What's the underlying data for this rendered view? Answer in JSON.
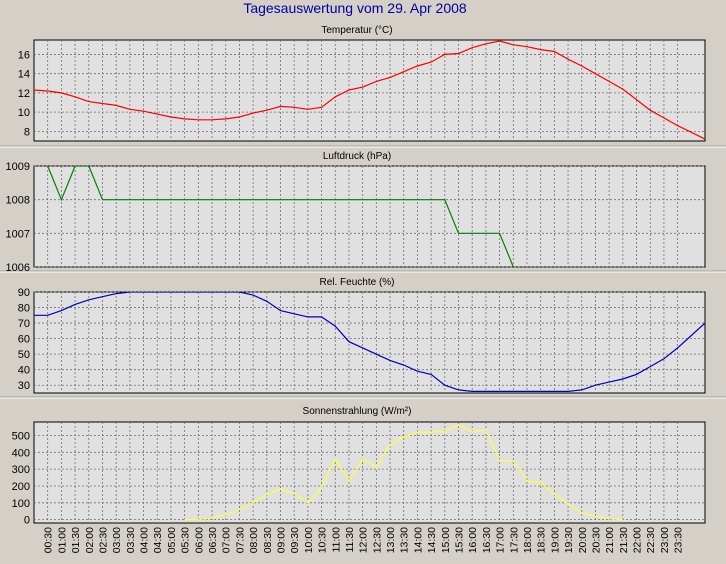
{
  "page": {
    "title": "Tagesauswertung vom 29. Apr 2008"
  },
  "time_labels": [
    "00:30",
    "01:00",
    "01:30",
    "02:00",
    "02:30",
    "03:00",
    "03:30",
    "04:00",
    "04:30",
    "05:00",
    "05:30",
    "06:00",
    "06:30",
    "07:00",
    "07:30",
    "08:00",
    "08:30",
    "09:00",
    "09:30",
    "10:00",
    "10:30",
    "11:00",
    "11:30",
    "12:00",
    "12:30",
    "13:00",
    "13:30",
    "14:00",
    "14:30",
    "15:00",
    "15:30",
    "16:00",
    "16:30",
    "17:00",
    "17:30",
    "18:00",
    "18:30",
    "19:00",
    "19:30",
    "20:00",
    "20:30",
    "21:00",
    "21:30",
    "22:00",
    "22:30",
    "23:00",
    "23:30"
  ],
  "colors": {
    "background": "#d4d0c8",
    "plot_bg": "#e0e0e0",
    "title": "#0000a0",
    "temperature": "#ff0000",
    "pressure": "#008000",
    "humidity": "#0000c0",
    "radiation": "#ffff40"
  },
  "chart_data": [
    {
      "type": "line",
      "title": "Temperatur (°C)",
      "xlabel": "",
      "ylabel": "",
      "ylim": [
        7,
        17.5
      ],
      "yticks": [
        8,
        10,
        12,
        14,
        16
      ],
      "grid": true,
      "series": [
        {
          "color": "#ff0000",
          "points": [
            [
              0.0,
              12.3
            ],
            [
              0.5,
              12.2
            ],
            [
              1.0,
              12.0
            ],
            [
              1.5,
              11.6
            ],
            [
              2.0,
              11.1
            ],
            [
              2.5,
              10.9
            ],
            [
              3.0,
              10.7
            ],
            [
              3.5,
              10.3
            ],
            [
              4.0,
              10.1
            ],
            [
              4.5,
              9.8
            ],
            [
              5.0,
              9.5
            ],
            [
              5.5,
              9.3
            ],
            [
              6.0,
              9.2
            ],
            [
              6.5,
              9.2
            ],
            [
              7.0,
              9.3
            ],
            [
              7.5,
              9.5
            ],
            [
              8.0,
              9.9
            ],
            [
              8.5,
              10.2
            ],
            [
              9.0,
              10.6
            ],
            [
              9.5,
              10.5
            ],
            [
              10.0,
              10.3
            ],
            [
              10.5,
              10.5
            ],
            [
              11.0,
              11.6
            ],
            [
              11.5,
              12.3
            ],
            [
              12.0,
              12.6
            ],
            [
              12.5,
              13.2
            ],
            [
              13.0,
              13.6
            ],
            [
              13.5,
              14.2
            ],
            [
              14.0,
              14.8
            ],
            [
              14.5,
              15.2
            ],
            [
              15.0,
              16.0
            ],
            [
              15.5,
              16.1
            ],
            [
              16.0,
              16.7
            ],
            [
              16.5,
              17.1
            ],
            [
              17.0,
              17.4
            ],
            [
              17.5,
              17.0
            ],
            [
              18.0,
              16.8
            ],
            [
              18.5,
              16.5
            ],
            [
              19.0,
              16.3
            ],
            [
              19.5,
              15.5
            ],
            [
              20.0,
              14.8
            ],
            [
              20.5,
              14.0
            ],
            [
              21.0,
              13.2
            ],
            [
              21.5,
              12.4
            ],
            [
              22.0,
              11.3
            ],
            [
              22.5,
              10.2
            ],
            [
              23.0,
              9.4
            ],
            [
              23.5,
              8.6
            ],
            [
              24.0,
              7.9
            ],
            [
              24.5,
              7.2
            ]
          ]
        }
      ]
    },
    {
      "type": "line",
      "title": "Luftdruck (hPa)",
      "xlabel": "",
      "ylabel": "",
      "ylim": [
        1006,
        1009
      ],
      "yticks": [
        1006,
        1007,
        1008,
        1009
      ],
      "grid": true,
      "series": [
        {
          "color": "#008000",
          "points": [
            [
              0.5,
              1009
            ],
            [
              1.0,
              1008
            ],
            [
              1.5,
              1009
            ],
            [
              2.0,
              1009
            ],
            [
              2.5,
              1008
            ],
            [
              3.0,
              1008
            ],
            [
              15.0,
              1008
            ],
            [
              15.5,
              1007
            ],
            [
              17.0,
              1007
            ],
            [
              17.5,
              1006
            ]
          ]
        }
      ]
    },
    {
      "type": "line",
      "title": "Rel. Feuchte (%)",
      "xlabel": "",
      "ylabel": "",
      "ylim": [
        25,
        90
      ],
      "yticks": [
        30,
        40,
        50,
        60,
        70,
        80,
        90
      ],
      "grid": true,
      "series": [
        {
          "color": "#0000c0",
          "points": [
            [
              0.0,
              75
            ],
            [
              0.5,
              75
            ],
            [
              1.0,
              78
            ],
            [
              1.5,
              82
            ],
            [
              2.0,
              85
            ],
            [
              2.5,
              87
            ],
            [
              3.0,
              89
            ],
            [
              3.5,
              90
            ],
            [
              7.5,
              90
            ],
            [
              8.0,
              88
            ],
            [
              8.5,
              84
            ],
            [
              9.0,
              78
            ],
            [
              9.5,
              76
            ],
            [
              10.0,
              74
            ],
            [
              10.5,
              74
            ],
            [
              11.0,
              68
            ],
            [
              11.5,
              58
            ],
            [
              12.0,
              54
            ],
            [
              12.5,
              50
            ],
            [
              13.0,
              46
            ],
            [
              13.5,
              43
            ],
            [
              14.0,
              39
            ],
            [
              14.5,
              37
            ],
            [
              15.0,
              30
            ],
            [
              15.5,
              27
            ],
            [
              16.0,
              26
            ],
            [
              16.5,
              26
            ],
            [
              18.5,
              26
            ],
            [
              19.5,
              26
            ],
            [
              20.0,
              27
            ],
            [
              20.5,
              30
            ],
            [
              21.0,
              32
            ],
            [
              21.5,
              34
            ],
            [
              22.0,
              37
            ],
            [
              22.5,
              42
            ],
            [
              23.0,
              47
            ],
            [
              23.5,
              54
            ],
            [
              24.0,
              62
            ],
            [
              24.5,
              70
            ]
          ]
        }
      ]
    },
    {
      "type": "line",
      "title": "Sonnenstrahlung (W/m²)",
      "xlabel": "",
      "ylabel": "",
      "ylim": [
        -20,
        580
      ],
      "yticks": [
        0,
        100,
        200,
        300,
        400,
        500
      ],
      "grid": true,
      "series": [
        {
          "color": "#ffff40",
          "points": [
            [
              5.5,
              0
            ],
            [
              6.0,
              2
            ],
            [
              6.5,
              8
            ],
            [
              7.0,
              30
            ],
            [
              7.5,
              60
            ],
            [
              8.0,
              100
            ],
            [
              8.5,
              150
            ],
            [
              9.0,
              180
            ],
            [
              9.5,
              155
            ],
            [
              10.0,
              100
            ],
            [
              10.5,
              190
            ],
            [
              11.0,
              360
            ],
            [
              11.5,
              230
            ],
            [
              12.0,
              360
            ],
            [
              12.5,
              310
            ],
            [
              13.0,
              440
            ],
            [
              13.5,
              490
            ],
            [
              14.0,
              520
            ],
            [
              14.5,
              520
            ],
            [
              15.0,
              525
            ],
            [
              15.5,
              560
            ],
            [
              16.0,
              525
            ],
            [
              16.5,
              530
            ],
            [
              17.0,
              350
            ],
            [
              17.5,
              350
            ],
            [
              18.0,
              230
            ],
            [
              18.5,
              220
            ],
            [
              19.0,
              150
            ],
            [
              19.5,
              95
            ],
            [
              20.0,
              40
            ],
            [
              20.5,
              20
            ],
            [
              21.0,
              5
            ],
            [
              21.5,
              0
            ]
          ]
        }
      ]
    }
  ]
}
